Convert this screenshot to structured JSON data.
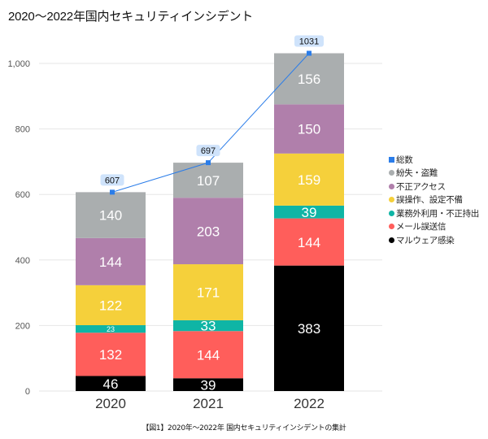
{
  "title": "2020～2022年国内セキュリティインシデント",
  "caption": "【図1】2020年～2022年 国内セキュリティインシデントの集計",
  "chart_data": {
    "type": "bar",
    "stacked": true,
    "title": "2020～2022年国内セキュリティインシデント",
    "xlabel": "",
    "ylabel": "",
    "categories": [
      "2020",
      "2021",
      "2022"
    ],
    "ylim": [
      0,
      1000
    ],
    "yticks": [
      0,
      200,
      400,
      600,
      800,
      1000
    ],
    "ytick_labels": [
      "0",
      "200",
      "400",
      "600",
      "800",
      "1,000"
    ],
    "grid": true,
    "legend_position": "right",
    "series": [
      {
        "name": "マルウェア感染",
        "values": [
          46,
          39,
          383
        ],
        "color": "#000000",
        "label_color": "#ffffff"
      },
      {
        "name": "メール誤送信",
        "values": [
          132,
          144,
          144
        ],
        "color": "#ff5e5b",
        "label_color": "#ffffff"
      },
      {
        "name": "業務外利用・不正持出",
        "values": [
          23,
          33,
          39
        ],
        "color": "#0fb5a5",
        "label_color": "#ffffff"
      },
      {
        "name": "誤操作、設定不備",
        "values": [
          122,
          171,
          159
        ],
        "color": "#f5d03b",
        "label_color": "#ffffff"
      },
      {
        "name": "不正アクセス",
        "values": [
          144,
          203,
          150
        ],
        "color": "#b07fab",
        "label_color": "#ffffff"
      },
      {
        "name": "紛失・盗難",
        "values": [
          140,
          107,
          156
        ],
        "color": "#aaaeaf",
        "label_color": "#ffffff"
      }
    ],
    "line_series": {
      "name": "総数",
      "values": [
        607,
        697,
        1031
      ],
      "color": "#2b7de9",
      "label_bg": "#cfe3fb"
    },
    "legend_order": [
      "総数",
      "紛失・盗難",
      "不正アクセス",
      "誤操作、設定不備",
      "業務外利用・不正持出",
      "メール誤送信",
      "マルウェア感染"
    ]
  }
}
